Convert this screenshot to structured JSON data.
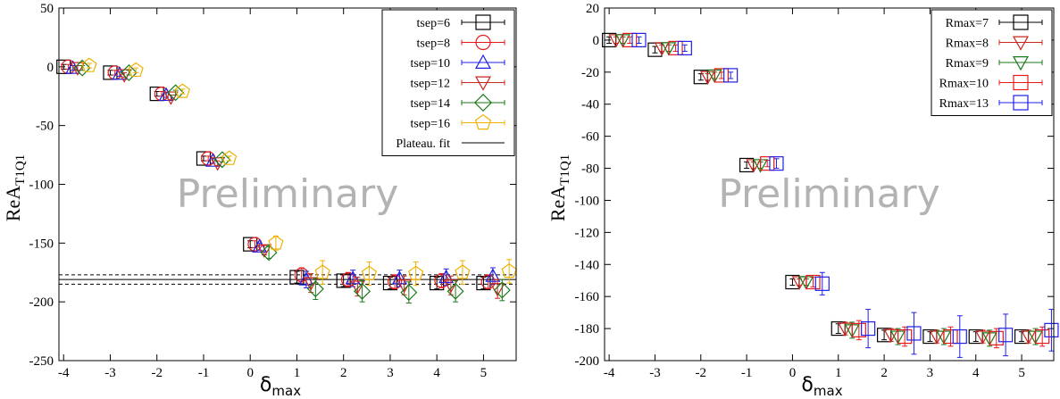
{
  "chart_data": [
    {
      "type": "scatter",
      "ylabel_main": "ReA",
      "ylabel_sub": "T1Q1",
      "xlabel_main": "δ",
      "xlabel_sub": "max",
      "watermark": "Preliminary",
      "xlim": [
        -4.1,
        5.7
      ],
      "ylim": [
        -250,
        50
      ],
      "xticks": [
        -4,
        -3,
        -2,
        -1,
        0,
        1,
        2,
        3,
        4,
        5
      ],
      "yticks": [
        -250,
        -200,
        -150,
        -100,
        -50,
        0,
        50
      ],
      "legend_position": "top-right",
      "x": [
        -4,
        -3,
        -2,
        -1,
        0,
        1,
        2,
        3,
        4,
        5
      ],
      "series": [
        {
          "name": "tsep=6",
          "marker": "square",
          "color": "#000000",
          "offset": 0,
          "values": [
            0,
            -5,
            -23,
            -78,
            -151,
            -179,
            -182,
            -184,
            -184,
            -184
          ],
          "errors": [
            2,
            2,
            2,
            2,
            3,
            5,
            5,
            5,
            5,
            5
          ]
        },
        {
          "name": "tsep=8",
          "marker": "circle",
          "color": "#e8191a",
          "offset": 0.1,
          "values": [
            0,
            -5,
            -23,
            -78,
            -151,
            -177,
            -181,
            -183,
            -182,
            -183
          ],
          "errors": [
            2,
            2,
            2,
            2,
            3,
            6,
            6,
            6,
            6,
            6
          ]
        },
        {
          "name": "tsep=10",
          "marker": "triangle-up",
          "color": "#1f1fe8",
          "offset": 0.2,
          "values": [
            -1,
            -6,
            -24,
            -80,
            -153,
            -181,
            -180,
            -180,
            -179,
            -178
          ],
          "errors": [
            2,
            2,
            2,
            2,
            3,
            7,
            7,
            7,
            7,
            7
          ]
        },
        {
          "name": "tsep=12",
          "marker": "triangle-down",
          "color": "#c8281e",
          "offset": 0.3,
          "values": [
            -1,
            -7,
            -26,
            -82,
            -156,
            -184,
            -187,
            -186,
            -186,
            -189
          ],
          "errors": [
            2,
            2,
            2,
            2,
            4,
            8,
            8,
            8,
            8,
            8
          ]
        },
        {
          "name": "tsep=14",
          "marker": "diamond",
          "color": "#1a7a1a",
          "offset": 0.4,
          "values": [
            -1,
            -5,
            -22,
            -79,
            -158,
            -189,
            -191,
            -192,
            -191,
            -190
          ],
          "errors": [
            2,
            2,
            2,
            2,
            5,
            9,
            9,
            9,
            9,
            9
          ]
        },
        {
          "name": "tsep=16",
          "marker": "pentagon",
          "color": "#f0b000",
          "offset": 0.55,
          "values": [
            1,
            -3,
            -21,
            -78,
            -150,
            -175,
            -176,
            -176,
            -175,
            -174
          ],
          "errors": [
            2,
            2,
            2,
            2,
            6,
            10,
            10,
            10,
            10,
            10
          ]
        }
      ],
      "fit": {
        "name": "Plateau. fit",
        "value": -181,
        "error": 4,
        "x_start": 0.9
      }
    },
    {
      "type": "scatter",
      "ylabel_main": "ReA",
      "ylabel_sub": "T1Q1",
      "xlabel_main": "δ",
      "xlabel_sub": "max",
      "watermark": "Preliminary",
      "xlim": [
        -4.1,
        5.7
      ],
      "ylim": [
        -200,
        20
      ],
      "xticks": [
        -4,
        -3,
        -2,
        -1,
        0,
        1,
        2,
        3,
        4,
        5
      ],
      "yticks": [
        -200,
        -180,
        -160,
        -140,
        -120,
        -100,
        -80,
        -60,
        -40,
        -20,
        0,
        20
      ],
      "legend_position": "top-right",
      "x": [
        -4,
        -3,
        -2,
        -1,
        0,
        1,
        2,
        3,
        4,
        5
      ],
      "series": [
        {
          "name": "Rmax=7",
          "marker": "square",
          "color": "#000000",
          "offset": 0,
          "values": [
            0,
            -6,
            -23,
            -78,
            -151,
            -180,
            -184,
            -185,
            -185,
            -185
          ],
          "errors": [
            2,
            2,
            2,
            2,
            2,
            3,
            3,
            3,
            3,
            3
          ]
        },
        {
          "name": "Rmax=8",
          "marker": "triangle-down",
          "color": "#c8281e",
          "offset": 0.15,
          "values": [
            0,
            -5,
            -23,
            -78,
            -151,
            -180,
            -184,
            -185,
            -185,
            -185
          ],
          "errors": [
            2,
            2,
            2,
            2,
            2,
            4,
            4,
            4,
            4,
            4
          ]
        },
        {
          "name": "Rmax=9",
          "marker": "triangle-down",
          "color": "#1a7a1a",
          "offset": 0.3,
          "values": [
            0,
            -5,
            -22,
            -78,
            -151,
            -181,
            -185,
            -185,
            -186,
            -185
          ],
          "errors": [
            2,
            2,
            2,
            2,
            2,
            5,
            5,
            5,
            5,
            5
          ]
        },
        {
          "name": "Rmax=10",
          "marker": "square",
          "color": "#e8191a",
          "offset": 0.45,
          "values": [
            0,
            -5,
            -22,
            -77,
            -151,
            -181,
            -185,
            -185,
            -186,
            -185
          ],
          "errors": [
            2,
            2,
            2,
            2,
            3,
            6,
            6,
            6,
            6,
            6
          ]
        },
        {
          "name": "Rmax=13",
          "marker": "square",
          "color": "#1f1fe8",
          "offset": 0.65,
          "values": [
            0,
            -5,
            -22,
            -77,
            -152,
            -180,
            -183,
            -185,
            -184,
            -181
          ],
          "errors": [
            2,
            2,
            2,
            3,
            7,
            12,
            13,
            13,
            13,
            13
          ]
        }
      ]
    }
  ]
}
